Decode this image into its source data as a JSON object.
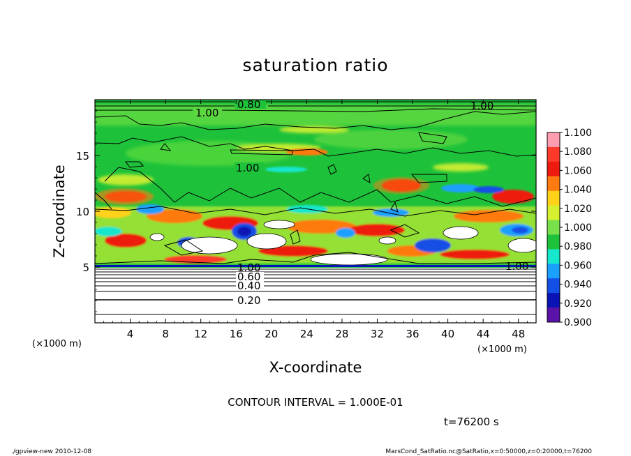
{
  "chart_data": {
    "type": "heatmap",
    "title": "saturation ratio",
    "xlabel": "X-coordinate",
    "ylabel": "Z-coordinate",
    "x_unit_left": "(×1000 m)",
    "x_unit_right": "(×1000 m)",
    "xlim": [
      0,
      50
    ],
    "ylim": [
      0,
      20
    ],
    "x_ticks": [
      "4",
      "8",
      "12",
      "16",
      "20",
      "24",
      "28",
      "32",
      "36",
      "40",
      "44",
      "48"
    ],
    "y_ticks": [
      "5",
      "10",
      "15"
    ],
    "colorbar_levels": [
      "1.100",
      "1.080",
      "1.060",
      "1.040",
      "1.020",
      "1.000",
      "0.980",
      "0.960",
      "0.940",
      "0.920",
      "0.900"
    ],
    "colorbar_colors": [
      "#ff9db0",
      "#ff3a2a",
      "#ee1a10",
      "#ff7a10",
      "#ffd21a",
      "#d6f030",
      "#78e04a",
      "#1ec23a",
      "#16e6cc",
      "#1aa0ff",
      "#1450e6",
      "#0a14b4",
      "#5a12a8"
    ],
    "contour_labels": [
      "0.80",
      "1.00",
      "1.00",
      "1.00",
      "1.00",
      "1.00",
      "0.60",
      "0.40",
      "0.20"
    ],
    "contour_interval": "CONTOUR INTERVAL = 1.000E-01",
    "time": "t=76200 s"
  },
  "footer": {
    "left": "./gpview-new   2010-12-08",
    "right": "MarsCond_SatRatio.nc@SatRatio,x=0:50000,z=0:20000,t=76200"
  }
}
